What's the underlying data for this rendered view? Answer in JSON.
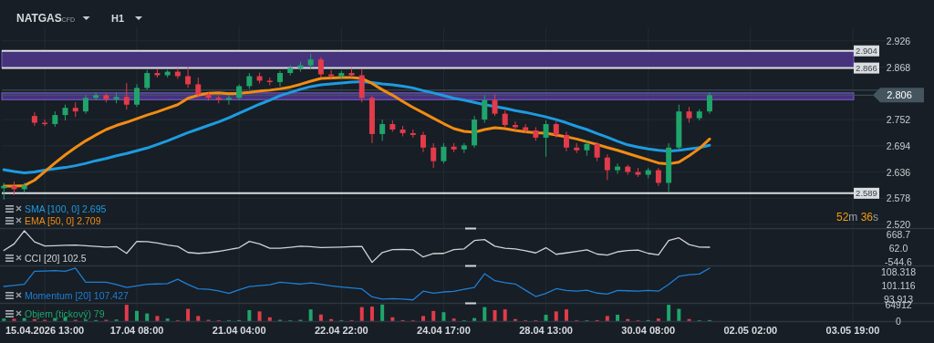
{
  "chart_data": [
    {
      "type": "candlestick",
      "title": "NATGAS",
      "subtitle": "CFD",
      "annotations": [
        "H1",
        "52m 36s"
      ],
      "categories": [
        null,
        null,
        null,
        null,
        null,
        null,
        null,
        null,
        null,
        null,
        null,
        null,
        null,
        null,
        null,
        null,
        null,
        null,
        null,
        null,
        null,
        null,
        null,
        null,
        null,
        null,
        null,
        null,
        null,
        null,
        null,
        null,
        null,
        null,
        null,
        null,
        null,
        null,
        null,
        null,
        null,
        null,
        null,
        null,
        null,
        null,
        null,
        null,
        null,
        null,
        null,
        null,
        null,
        null,
        null,
        null,
        null,
        null,
        null,
        null,
        null,
        null,
        null,
        null,
        null,
        null,
        null,
        null,
        null,
        null,
        null,
        null,
        null,
        null,
        null,
        null,
        null,
        null,
        null,
        null,
        null,
        null,
        null,
        null,
        null,
        null,
        null,
        null,
        null
      ],
      "ohlc": [
        [
          2.6,
          2.612,
          2.575,
          2.605
        ],
        [
          2.605,
          2.615,
          2.585,
          2.598
        ],
        [
          2.598,
          2.612,
          2.59,
          2.606
        ],
        [
          2.76,
          2.768,
          2.738,
          2.745
        ],
        [
          2.745,
          2.752,
          2.738,
          2.742
        ],
        [
          2.742,
          2.77,
          2.736,
          2.762
        ],
        [
          2.762,
          2.785,
          2.75,
          2.778
        ],
        [
          2.778,
          2.79,
          2.758,
          2.77
        ],
        [
          2.77,
          2.806,
          2.765,
          2.8
        ],
        [
          2.8,
          2.812,
          2.795,
          2.806
        ],
        [
          2.806,
          2.81,
          2.79,
          2.797
        ],
        [
          2.797,
          2.812,
          2.788,
          2.802
        ],
        [
          2.802,
          2.833,
          2.774,
          2.785
        ],
        [
          2.785,
          2.83,
          2.78,
          2.822
        ],
        [
          2.822,
          2.862,
          2.818,
          2.855
        ],
        [
          2.855,
          2.865,
          2.845,
          2.85
        ],
        [
          2.85,
          2.862,
          2.845,
          2.858
        ],
        [
          2.858,
          2.866,
          2.842,
          2.848
        ],
        [
          2.848,
          2.868,
          2.822,
          2.83
        ],
        [
          2.83,
          2.845,
          2.8,
          2.808
        ],
        [
          2.808,
          2.812,
          2.794,
          2.8
        ],
        [
          2.8,
          2.806,
          2.788,
          2.796
        ],
        [
          2.796,
          2.805,
          2.785,
          2.8
        ],
        [
          2.8,
          2.83,
          2.796,
          2.826
        ],
        [
          2.826,
          2.855,
          2.82,
          2.848
        ],
        [
          2.848,
          2.856,
          2.832,
          2.838
        ],
        [
          2.838,
          2.845,
          2.828,
          2.835
        ],
        [
          2.835,
          2.86,
          2.825,
          2.855
        ],
        [
          2.855,
          2.872,
          2.85,
          2.866
        ],
        [
          2.866,
          2.88,
          2.858,
          2.872
        ],
        [
          2.872,
          2.898,
          2.865,
          2.885
        ],
        [
          2.885,
          2.89,
          2.845,
          2.852
        ],
        [
          2.852,
          2.862,
          2.84,
          2.848
        ],
        [
          2.848,
          2.86,
          2.842,
          2.855
        ],
        [
          2.855,
          2.866,
          2.845,
          2.85
        ],
        [
          2.85,
          2.865,
          2.79,
          2.8
        ],
        [
          2.8,
          2.805,
          2.7,
          2.72
        ],
        [
          2.72,
          2.752,
          2.705,
          2.742
        ],
        [
          2.742,
          2.75,
          2.725,
          2.73
        ],
        [
          2.73,
          2.738,
          2.715,
          2.722
        ],
        [
          2.722,
          2.73,
          2.712,
          2.718
        ],
        [
          2.718,
          2.725,
          2.68,
          2.69
        ],
        [
          2.69,
          2.7,
          2.645,
          2.66
        ],
        [
          2.66,
          2.7,
          2.655,
          2.692
        ],
        [
          2.692,
          2.7,
          2.68,
          2.686
        ],
        [
          2.686,
          2.7,
          2.678,
          2.695
        ],
        [
          2.695,
          2.76,
          2.69,
          2.752
        ],
        [
          2.752,
          2.806,
          2.745,
          2.795
        ],
        [
          2.795,
          2.808,
          2.76,
          2.765
        ],
        [
          2.765,
          2.772,
          2.735,
          2.74
        ],
        [
          2.74,
          2.748,
          2.728,
          2.735
        ],
        [
          2.735,
          2.742,
          2.722,
          2.728
        ],
        [
          2.728,
          2.735,
          2.705,
          2.712
        ],
        [
          2.712,
          2.75,
          2.67,
          2.742
        ],
        [
          2.742,
          2.748,
          2.712,
          2.718
        ],
        [
          2.718,
          2.725,
          2.682,
          2.69
        ],
        [
          2.69,
          2.7,
          2.678,
          2.684
        ],
        [
          2.684,
          2.705,
          2.672,
          2.698
        ],
        [
          2.698,
          2.702,
          2.66,
          2.668
        ],
        [
          2.668,
          2.675,
          2.618,
          2.64
        ],
        [
          2.64,
          2.655,
          2.632,
          2.648
        ],
        [
          2.648,
          2.652,
          2.63,
          2.636
        ],
        [
          2.636,
          2.645,
          2.625,
          2.63
        ],
        [
          2.63,
          2.645,
          2.622,
          2.64
        ],
        [
          2.64,
          2.645,
          2.605,
          2.612
        ],
        [
          2.612,
          2.7,
          2.592,
          2.69
        ],
        [
          2.69,
          2.785,
          2.685,
          2.77
        ],
        [
          2.77,
          2.78,
          2.745,
          2.755
        ],
        [
          2.755,
          2.775,
          2.75,
          2.77
        ],
        [
          2.77,
          2.812,
          2.765,
          2.806
        ],
        null,
        null,
        null,
        null,
        null,
        null,
        null,
        null,
        null,
        null,
        null,
        null,
        null,
        null,
        null,
        null,
        null,
        null,
        null
      ],
      "colors": [
        "#1fa46b",
        "#e23b4a",
        "#1fa46b",
        "#e23b4a",
        "#e23b4a",
        "#1fa46b",
        "#1fa46b",
        "#e23b4a",
        "#1fa46b",
        "#1fa46b",
        "#e23b4a",
        "#1fa46b",
        "#e23b4a",
        "#1fa46b",
        "#1fa46b",
        "#e23b4a",
        "#1fa46b",
        "#e23b4a",
        "#e23b4a",
        "#e23b4a",
        "#e23b4a",
        "#e23b4a",
        "#1fa46b",
        "#1fa46b",
        "#1fa46b",
        "#e23b4a",
        "#e23b4a",
        "#1fa46b",
        "#1fa46b",
        "#1fa46b",
        "#1fa46b",
        "#e23b4a",
        "#e23b4a",
        "#1fa46b",
        "#e23b4a",
        "#e23b4a",
        "#e23b4a",
        "#1fa46b",
        "#e23b4a",
        "#e23b4a",
        "#e23b4a",
        "#e23b4a",
        "#e23b4a",
        "#1fa46b",
        "#e23b4a",
        "#1fa46b",
        "#1fa46b",
        "#1fa46b",
        "#e23b4a",
        "#e23b4a",
        "#e23b4a",
        "#e23b4a",
        "#e23b4a",
        "#1fa46b",
        "#e23b4a",
        "#e23b4a",
        "#e23b4a",
        "#1fa46b",
        "#e23b4a",
        "#e23b4a",
        "#1fa46b",
        "#e23b4a",
        "#e23b4a",
        "#1fa46b",
        "#e23b4a",
        "#1fa46b",
        "#1fa46b",
        "#e23b4a",
        "#1fa46b",
        "#1fa46b",
        null,
        null,
        null,
        null,
        null,
        null,
        null,
        null,
        null,
        null,
        null,
        null,
        null,
        null,
        null,
        null,
        null,
        null,
        null
      ],
      "series": [
        {
          "type": "line",
          "name": "SMA [100, 0] 2.695",
          "color": "#1e9be0",
          "values": [
            2.641,
            2.637,
            2.634,
            2.636,
            2.64,
            2.643,
            2.646,
            2.65,
            2.655,
            2.661,
            2.666,
            2.672,
            2.677,
            2.683,
            2.689,
            2.697,
            2.705,
            2.714,
            2.723,
            2.731,
            2.739,
            2.747,
            2.756,
            2.766,
            2.776,
            2.786,
            2.795,
            2.805,
            2.812,
            2.819,
            2.825,
            2.829,
            2.831,
            2.833,
            2.835,
            2.836,
            2.834,
            2.831,
            2.829,
            2.826,
            2.822,
            2.816,
            2.811,
            2.805,
            2.799,
            2.795,
            2.79,
            2.785,
            2.781,
            2.777,
            2.772,
            2.768,
            2.763,
            2.758,
            2.752,
            2.745,
            2.737,
            2.73,
            2.721,
            2.713,
            2.704,
            2.696,
            2.691,
            2.687,
            2.684,
            2.682,
            2.684,
            2.687,
            2.69,
            2.695,
            null,
            null,
            null,
            null,
            null,
            null,
            null,
            null,
            null,
            null,
            null,
            null,
            null,
            null,
            null,
            null,
            null,
            null,
            null
          ]
        },
        {
          "type": "line",
          "name": "EMA [50, 0] 2.709",
          "color": "#f28c14",
          "values": [
            2.605,
            2.605,
            2.606,
            2.618,
            2.637,
            2.656,
            2.674,
            2.69,
            2.705,
            2.718,
            2.73,
            2.739,
            2.746,
            2.754,
            2.762,
            2.769,
            2.777,
            2.785,
            2.799,
            2.806,
            2.81,
            2.811,
            2.809,
            2.81,
            2.812,
            2.815,
            2.817,
            2.82,
            2.824,
            2.83,
            2.837,
            2.843,
            2.844,
            2.845,
            2.845,
            2.843,
            2.832,
            2.818,
            2.806,
            2.792,
            2.779,
            2.767,
            2.755,
            2.743,
            2.732,
            2.726,
            2.724,
            2.73,
            2.734,
            2.732,
            2.728,
            2.725,
            2.723,
            2.722,
            2.718,
            2.714,
            2.709,
            2.703,
            2.697,
            2.69,
            2.684,
            2.677,
            2.67,
            2.663,
            2.656,
            2.654,
            2.658,
            2.672,
            2.688,
            2.709,
            null,
            null,
            null,
            null,
            null,
            null,
            null,
            null,
            null,
            null,
            null,
            null,
            null,
            null,
            null,
            null,
            null,
            null,
            null
          ]
        }
      ],
      "ylim": [
        2.512,
        2.956
      ],
      "yticks": [
        2.926,
        2.868,
        2.752,
        2.694,
        2.636,
        2.578,
        {
          "value": 2.52,
          "label": "2.520"
        }
      ],
      "ref_lines": [
        {
          "axis": "y",
          "value": 2.904,
          "label": "2.904",
          "color": "#d9dde0"
        },
        {
          "axis": "y",
          "value": 2.866,
          "label": "2.866",
          "color": "#d9dde0"
        },
        {
          "axis": "y",
          "value": 2.589,
          "label": "2.589",
          "color": "#d9dde0"
        },
        {
          "axis": "y",
          "value": 2.817,
          "color": "#44555f"
        },
        {
          "axis": "y",
          "value": 2.806,
          "label": "2.806",
          "color": "#44555f"
        }
      ],
      "bands": [
        {
          "axis": "y",
          "from": 2.866,
          "to": 2.904,
          "color": "#4b3585"
        },
        {
          "axis": "y",
          "from": 2.796,
          "to": 2.811,
          "color": "#4b3585"
        }
      ],
      "grid": true,
      "legend": "bottom left",
      "tick_labels": "y"
    },
    {
      "type": "line",
      "categories": [
        null,
        null,
        null,
        null,
        null,
        null,
        null,
        null,
        null,
        null,
        null,
        null,
        null,
        null,
        null,
        null,
        null,
        null,
        null,
        null,
        null,
        null,
        null,
        null,
        null,
        null,
        null,
        null,
        null,
        null,
        null,
        null,
        null,
        null,
        null,
        null,
        null,
        null,
        null,
        null,
        null,
        null,
        null,
        null,
        null,
        null,
        null,
        null,
        null,
        null,
        null,
        null,
        null,
        null,
        null,
        null,
        null,
        null,
        null,
        null,
        null,
        null,
        null,
        null,
        null,
        null,
        null,
        null,
        null,
        null,
        null,
        null,
        null,
        null,
        null,
        null,
        null,
        null,
        null,
        null,
        null,
        null,
        null,
        null,
        null,
        null,
        null,
        null,
        null
      ],
      "series": [
        {
          "name": "CCI [20] 102.5",
          "color": "#cfd3d6",
          "values": [
            -40,
            250,
            830,
            340,
            160,
            170,
            190,
            200,
            170,
            140,
            110,
            130,
            -170,
            360,
            350,
            290,
            200,
            140,
            -130,
            -170,
            -140,
            -80,
            0,
            80,
            360,
            250,
            60,
            60,
            100,
            150,
            130,
            90,
            100,
            110,
            130,
            140,
            -570,
            -130,
            0,
            10,
            -10,
            -330,
            -180,
            -170,
            0,
            30,
            400,
            440,
            150,
            60,
            30,
            -50,
            -150,
            80,
            -210,
            -150,
            -80,
            -10,
            -200,
            -250,
            -100,
            -40,
            -20,
            -170,
            -240,
            400,
            520,
            220,
            110,
            102.5,
            null,
            null,
            null,
            null,
            null,
            null,
            null,
            null,
            null,
            null,
            null,
            null,
            null,
            null,
            null,
            null,
            null,
            null,
            null
          ]
        }
      ],
      "ylim": [
        -706,
        871
      ],
      "yticks": [
        668.7,
        {
          "value": 62,
          "label": "62.0"
        },
        -544.6
      ],
      "grid": "x",
      "legend": "bottom left",
      "tick_labels": "y"
    },
    {
      "type": "line",
      "categories": [
        null,
        null,
        null,
        null,
        null,
        null,
        null,
        null,
        null,
        null,
        null,
        null,
        null,
        null,
        null,
        null,
        null,
        null,
        null,
        null,
        null,
        null,
        null,
        null,
        null,
        null,
        null,
        null,
        null,
        null,
        null,
        null,
        null,
        null,
        null,
        null,
        null,
        null,
        null,
        null,
        null,
        null,
        null,
        null,
        null,
        null,
        null,
        null,
        null,
        null,
        null,
        null,
        null,
        null,
        null,
        null,
        null,
        null,
        null,
        null,
        null,
        null,
        null,
        null,
        null,
        null,
        null,
        null,
        null,
        null,
        null,
        null,
        null,
        null,
        null,
        null,
        null,
        null,
        null,
        null,
        null,
        null,
        null,
        null,
        null,
        null,
        null,
        null,
        null
      ],
      "series": [
        {
          "name": "Momentum [20] 107.427",
          "color": "#1f7fd6",
          "values": [
            100.5,
            101.0,
            101.6,
            108.5,
            108.6,
            108.8,
            108.5,
            110.1,
            102.7,
            102.7,
            102.7,
            101.5,
            100.0,
            100.8,
            101.6,
            101.8,
            102.0,
            104.3,
            101.5,
            99.2,
            99.0,
            98.2,
            96.8,
            98.8,
            100.4,
            100.9,
            101.4,
            102.7,
            102.2,
            101.7,
            102.4,
            101.6,
            100.8,
            100.2,
            99.7,
            99.2,
            95.0,
            93.8,
            94.1,
            93.8,
            93.4,
            98.0,
            97.0,
            97.6,
            97.9,
            99.0,
            100.0,
            107.2,
            103.5,
            102.5,
            101.8,
            98.5,
            95.2,
            96.8,
            99.3,
            98.4,
            98.0,
            98.5,
            97.0,
            96.5,
            98.4,
            98.2,
            98.0,
            98.4,
            98.0,
            101.6,
            105.8,
            106.7,
            107.0,
            110.1,
            null,
            null,
            null,
            null,
            null,
            null,
            null,
            null,
            null,
            null,
            null,
            null,
            null,
            null,
            null,
            null,
            null,
            null,
            null
          ]
        }
      ],
      "ylim": [
        91.85,
        111.05
      ],
      "yticks": [
        108.318,
        101.116,
        93.913
      ],
      "grid": "x",
      "legend": "bottom left",
      "tick_labels": "y"
    },
    {
      "type": "bar",
      "categories": [
        null,
        null,
        null,
        null,
        "15.04.2026 13:00",
        null,
        null,
        null,
        null,
        null,
        null,
        null,
        null,
        "17.04 08:00",
        null,
        null,
        null,
        null,
        null,
        null,
        null,
        null,
        null,
        "21.04 04:00",
        null,
        null,
        null,
        null,
        null,
        null,
        null,
        null,
        null,
        "22.04 22:00",
        null,
        null,
        null,
        null,
        null,
        null,
        null,
        null,
        null,
        "24.04 17:00",
        null,
        null,
        null,
        null,
        null,
        null,
        null,
        null,
        null,
        "28.04 13:00",
        null,
        null,
        null,
        null,
        null,
        null,
        null,
        null,
        null,
        "30.04 08:00",
        null,
        null,
        null,
        null,
        null,
        null,
        null,
        null,
        null,
        "02.05 02:00",
        null,
        null,
        null,
        null,
        null,
        null,
        null,
        null,
        null,
        "03.05 19:00",
        null,
        null,
        null,
        null,
        null
      ],
      "series": [
        {
          "name": "Objem (tickový) 79",
          "colors": [
            "#1fa46b",
            "#e23b4a",
            "#1fa46b",
            "#e23b4a",
            "#e23b4a",
            "#1fa46b",
            "#1fa46b",
            "#e23b4a",
            "#1fa46b",
            "#1fa46b",
            "#e23b4a",
            "#1fa46b",
            "#e23b4a",
            "#1fa46b",
            "#1fa46b",
            "#e23b4a",
            "#1fa46b",
            "#e23b4a",
            "#e23b4a",
            "#e23b4a",
            "#e23b4a",
            "#e23b4a",
            "#1fa46b",
            "#1fa46b",
            "#1fa46b",
            "#e23b4a",
            "#e23b4a",
            "#1fa46b",
            "#1fa46b",
            "#1fa46b",
            "#1fa46b",
            "#e23b4a",
            "#e23b4a",
            "#1fa46b",
            "#e23b4a",
            "#e23b4a",
            "#e23b4a",
            "#1fa46b",
            "#e23b4a",
            "#e23b4a",
            "#e23b4a",
            "#e23b4a",
            "#e23b4a",
            "#1fa46b",
            "#e23b4a",
            "#1fa46b",
            "#1fa46b",
            "#1fa46b",
            "#e23b4a",
            "#e23b4a",
            "#e23b4a",
            "#e23b4a",
            "#e23b4a",
            "#1fa46b",
            "#e23b4a",
            "#e23b4a",
            "#e23b4a",
            "#1fa46b",
            "#e23b4a",
            "#e23b4a",
            "#1fa46b",
            "#e23b4a",
            "#e23b4a",
            "#1fa46b",
            "#e23b4a",
            "#1fa46b",
            "#1fa46b",
            "#e23b4a",
            "#1fa46b",
            "#1fa46b",
            null,
            null,
            null,
            null,
            null,
            null,
            null,
            null,
            null,
            null,
            null,
            null,
            null,
            null,
            null,
            null,
            null,
            null,
            null
          ],
          "values": [
            10000,
            9000,
            12000,
            8000,
            5000,
            12000,
            15000,
            5000,
            6000,
            4000,
            5000,
            6000,
            64000,
            40000,
            30000,
            20000,
            10000,
            3000,
            48000,
            20000,
            5000,
            3000,
            3000,
            4000,
            43000,
            38000,
            15000,
            5000,
            3000,
            5000,
            46000,
            26000,
            8000,
            3000,
            3000,
            55000,
            57000,
            65000,
            15000,
            4000,
            3000,
            20000,
            40000,
            35000,
            10000,
            3000,
            12000,
            55000,
            43000,
            46000,
            8000,
            3000,
            3000,
            25000,
            38000,
            46000,
            3000,
            3000,
            4000,
            20000,
            25000,
            8000,
            3000,
            4000,
            10000,
            64000,
            48000,
            8000,
            3000,
            4000,
            null,
            null,
            null,
            null,
            null,
            null,
            null,
            null,
            null,
            null,
            null,
            null,
            null,
            null,
            null,
            null,
            null,
            null,
            null
          ]
        }
      ],
      "ylim": [
        0,
        68000
      ],
      "yticks": [
        64912,
        0
      ],
      "grid": "x",
      "legend": "bottom left"
    }
  ]
}
